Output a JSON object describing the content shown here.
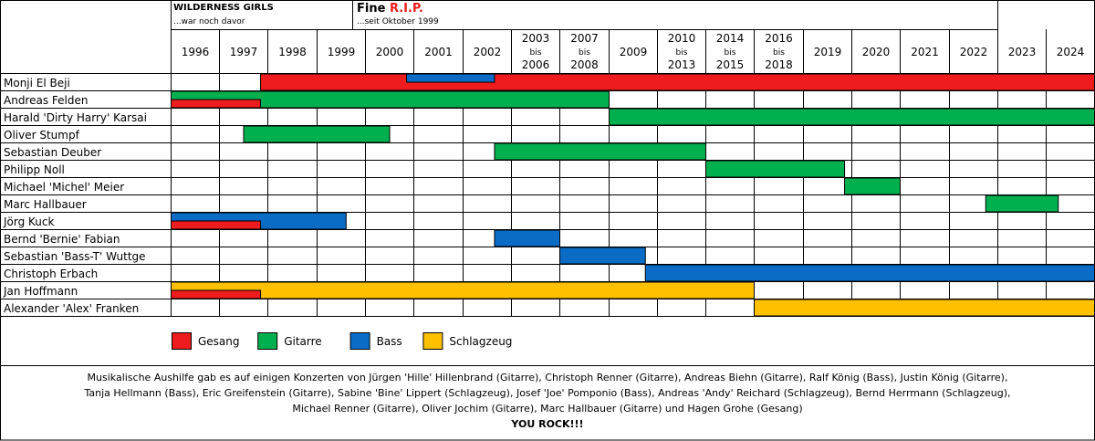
{
  "chart_data": {
    "type": "timeline",
    "eras": [
      {
        "name": "WILDERNESS GIRLS",
        "subtitle": "...war noch davor",
        "name_color": "#000000"
      },
      {
        "name": "Fine",
        "name_accent": "R.I.P.",
        "subtitle": "...seit Oktober 1999",
        "accent_color": "#ee1c1c"
      }
    ],
    "columns": [
      {
        "label": [
          "1996"
        ]
      },
      {
        "label": [
          "1997"
        ]
      },
      {
        "label": [
          "1998"
        ]
      },
      {
        "label": [
          "1999"
        ]
      },
      {
        "label": [
          "2000"
        ]
      },
      {
        "label": [
          "2001"
        ]
      },
      {
        "label": [
          "2002"
        ]
      },
      {
        "label": [
          "2003",
          "bis",
          "2006"
        ]
      },
      {
        "label": [
          "2007",
          "bis",
          "2008"
        ]
      },
      {
        "label": [
          "2009"
        ]
      },
      {
        "label": [
          "2010",
          "bis",
          "2013"
        ]
      },
      {
        "label": [
          "2014",
          "bis",
          "2015"
        ]
      },
      {
        "label": [
          "2016",
          "bis",
          "2018"
        ]
      },
      {
        "label": [
          "2019"
        ]
      },
      {
        "label": [
          "2020"
        ]
      },
      {
        "label": [
          "2021"
        ]
      },
      {
        "label": [
          "2022"
        ]
      },
      {
        "label": [
          "2023"
        ]
      },
      {
        "label": [
          "2024"
        ]
      }
    ],
    "roles": [
      {
        "key": "gesang",
        "label": "Gesang",
        "color": "#ee1c1c"
      },
      {
        "key": "gitarre",
        "label": "Gitarre",
        "color": "#00b04f"
      },
      {
        "key": "bass",
        "label": "Bass",
        "color": "#0a6cc4"
      },
      {
        "key": "schlagzeug",
        "label": "Schlagzeug",
        "color": "#ffc000"
      }
    ],
    "members": [
      {
        "name": "Monji El Beji",
        "bars": [
          {
            "role": "gesang",
            "from": 1.85,
            "to": 19
          },
          {
            "role": "bass",
            "from": 4.85,
            "to": 6.65,
            "lane": "top"
          }
        ]
      },
      {
        "name": "Andreas Felden",
        "bars": [
          {
            "role": "gitarre",
            "from": 0,
            "to": 9
          },
          {
            "role": "gesang",
            "from": 0,
            "to": 1.85,
            "lane": "bottom"
          }
        ]
      },
      {
        "name": "Harald 'Dirty Harry' Karsai",
        "bars": [
          {
            "role": "gitarre",
            "from": 9,
            "to": 19
          }
        ]
      },
      {
        "name": "Oliver Stumpf",
        "bars": [
          {
            "role": "gitarre",
            "from": 1.5,
            "to": 4.5
          }
        ]
      },
      {
        "name": "Sebastian Deuber",
        "bars": [
          {
            "role": "gitarre",
            "from": 6.65,
            "to": 11
          }
        ]
      },
      {
        "name": "Philipp Noll",
        "bars": [
          {
            "role": "gitarre",
            "from": 11,
            "to": 13.85
          }
        ]
      },
      {
        "name": "Michael 'Michel' Meier",
        "bars": [
          {
            "role": "gitarre",
            "from": 13.85,
            "to": 15
          }
        ]
      },
      {
        "name": "Marc Hallbauer",
        "bars": [
          {
            "role": "gitarre",
            "from": 16.75,
            "to": 18.25
          }
        ]
      },
      {
        "name": "Jörg Kuck",
        "bars": [
          {
            "role": "bass",
            "from": 0,
            "to": 3.6
          },
          {
            "role": "gesang",
            "from": 0,
            "to": 1.85,
            "lane": "bottom"
          }
        ]
      },
      {
        "name": "Bernd 'Bernie' Fabian",
        "bars": [
          {
            "role": "bass",
            "from": 6.65,
            "to": 8
          }
        ]
      },
      {
        "name": "Sebastian 'Bass-T' Wuttge",
        "bars": [
          {
            "role": "bass",
            "from": 8,
            "to": 9.75
          }
        ]
      },
      {
        "name": "Christoph Erbach",
        "bars": [
          {
            "role": "bass",
            "from": 9.75,
            "to": 19
          }
        ]
      },
      {
        "name": "Jan Hoffmann",
        "bars": [
          {
            "role": "schlagzeug",
            "from": 0,
            "to": 12
          },
          {
            "role": "gesang",
            "from": 0,
            "to": 1.85,
            "lane": "bottom"
          }
        ]
      },
      {
        "name": "Alexander 'Alex' Franken",
        "bars": [
          {
            "role": "schlagzeug",
            "from": 12,
            "to": 19
          }
        ]
      }
    ],
    "footer": {
      "lines": [
        "Musikalische Aushilfe gab es auf einigen Konzerten von Jürgen 'Hille' Hillenbrand (Gitarre), Christoph Renner (Gitarre), Andreas Biehn (Gitarre), Ralf König (Bass), Justin König (Gitarre),",
        "Tanja Hellmann (Bass), Eric Greifenstein (Gitarre), Sabine 'Bine' Lippert (Schlagzeug), Josef 'Joe' Pomponio (Bass), Andreas 'Andy' Reichard (Schlagzeug), Bernd Herrmann (Schlagzeug),",
        "Michael Renner (Gitarre), Oliver Jochim (Gitarre), Marc Hallbauer (Gitarre) und Hagen Grohe (Gesang)"
      ],
      "closing": "YOU ROCK!!!"
    }
  }
}
